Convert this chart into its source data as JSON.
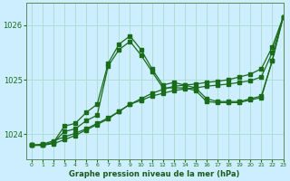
{
  "xlabel": "Graphe pression niveau de la mer (hPa)",
  "xlim": [
    -0.5,
    23
  ],
  "ylim": [
    1023.55,
    1026.4
  ],
  "yticks": [
    1024,
    1025,
    1026
  ],
  "xticks": [
    0,
    1,
    2,
    3,
    4,
    5,
    6,
    7,
    8,
    9,
    10,
    11,
    12,
    13,
    14,
    15,
    16,
    17,
    18,
    19,
    20,
    21,
    22,
    23
  ],
  "bg_color": "#cceeff",
  "grid_color": "#aaddcc",
  "line_color": "#1a6b1a",
  "series1": {
    "x": [
      0,
      1,
      2,
      3,
      4,
      5,
      6,
      7,
      8,
      9,
      10,
      11,
      12,
      13,
      14,
      15,
      16,
      17,
      18,
      19,
      20,
      21,
      22,
      23
    ],
    "y": [
      1023.8,
      1023.8,
      1023.85,
      1024.15,
      1024.2,
      1024.4,
      1024.55,
      1025.3,
      1025.65,
      1025.8,
      1025.55,
      1025.2,
      1024.9,
      1024.95,
      1024.9,
      1024.85,
      1024.65,
      1024.6,
      1024.6,
      1024.6,
      1024.65,
      1024.7,
      1025.35,
      1026.15
    ]
  },
  "series2": {
    "x": [
      0,
      1,
      2,
      3,
      4,
      5,
      6,
      7,
      8,
      9,
      10,
      11,
      12,
      13,
      14,
      15,
      16,
      17,
      18,
      19,
      20,
      21,
      22,
      23
    ],
    "y": [
      1023.8,
      1023.82,
      1023.88,
      1023.95,
      1024.02,
      1024.1,
      1024.2,
      1024.3,
      1024.42,
      1024.55,
      1024.65,
      1024.75,
      1024.82,
      1024.88,
      1024.9,
      1024.92,
      1024.95,
      1024.97,
      1025.0,
      1025.05,
      1025.1,
      1025.2,
      1025.6,
      1026.15
    ]
  },
  "series3": {
    "x": [
      0,
      1,
      2,
      3,
      4,
      5,
      6,
      7,
      8,
      9,
      10,
      11,
      12,
      13,
      14,
      15,
      16,
      17,
      18,
      19,
      20,
      21,
      22,
      23
    ],
    "y": [
      1023.8,
      1023.8,
      1023.85,
      1024.05,
      1024.1,
      1024.25,
      1024.35,
      1025.25,
      1025.55,
      1025.7,
      1025.45,
      1025.15,
      1024.85,
      1024.85,
      1024.85,
      1024.8,
      1024.6,
      1024.58,
      1024.58,
      1024.58,
      1024.63,
      1024.67,
      1025.35,
      1026.15
    ]
  },
  "series4": {
    "x": [
      0,
      1,
      2,
      3,
      4,
      5,
      6,
      7,
      8,
      9,
      10,
      11,
      12,
      13,
      14,
      15,
      16,
      17,
      18,
      19,
      20,
      21,
      22,
      23
    ],
    "y": [
      1023.8,
      1023.8,
      1023.83,
      1023.9,
      1023.98,
      1024.08,
      1024.18,
      1024.28,
      1024.42,
      1024.55,
      1024.62,
      1024.7,
      1024.75,
      1024.8,
      1024.83,
      1024.85,
      1024.88,
      1024.9,
      1024.92,
      1024.95,
      1024.98,
      1025.05,
      1025.5,
      1026.15
    ]
  }
}
